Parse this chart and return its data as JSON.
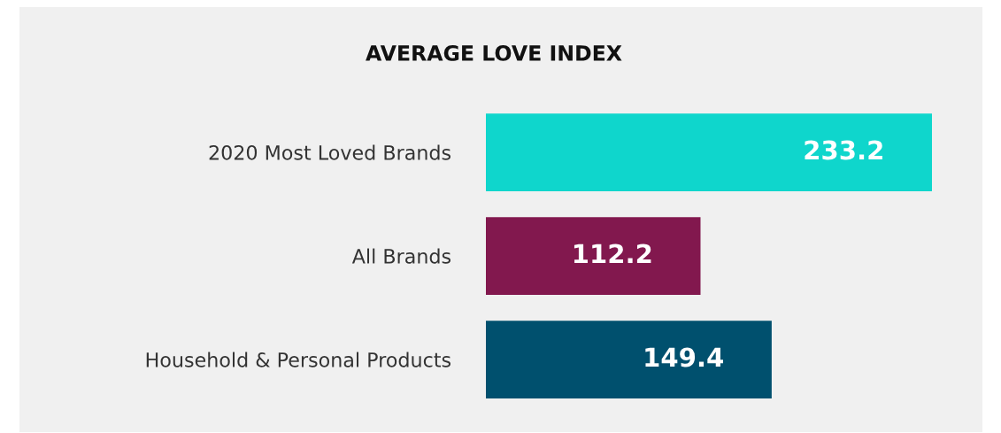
{
  "chart_data": {
    "type": "bar",
    "orientation": "horizontal",
    "title": "AVERAGE LOVE INDEX",
    "categories": [
      "2020 Most Loved Brands",
      "All Brands",
      "Household & Personal Products"
    ],
    "values": [
      233.2,
      112.2,
      149.4
    ],
    "colors": [
      "#0fd6cc",
      "#82184e",
      "#00506e"
    ],
    "data_labels": true,
    "grid": false,
    "legend": false,
    "tick_labels": "y"
  }
}
